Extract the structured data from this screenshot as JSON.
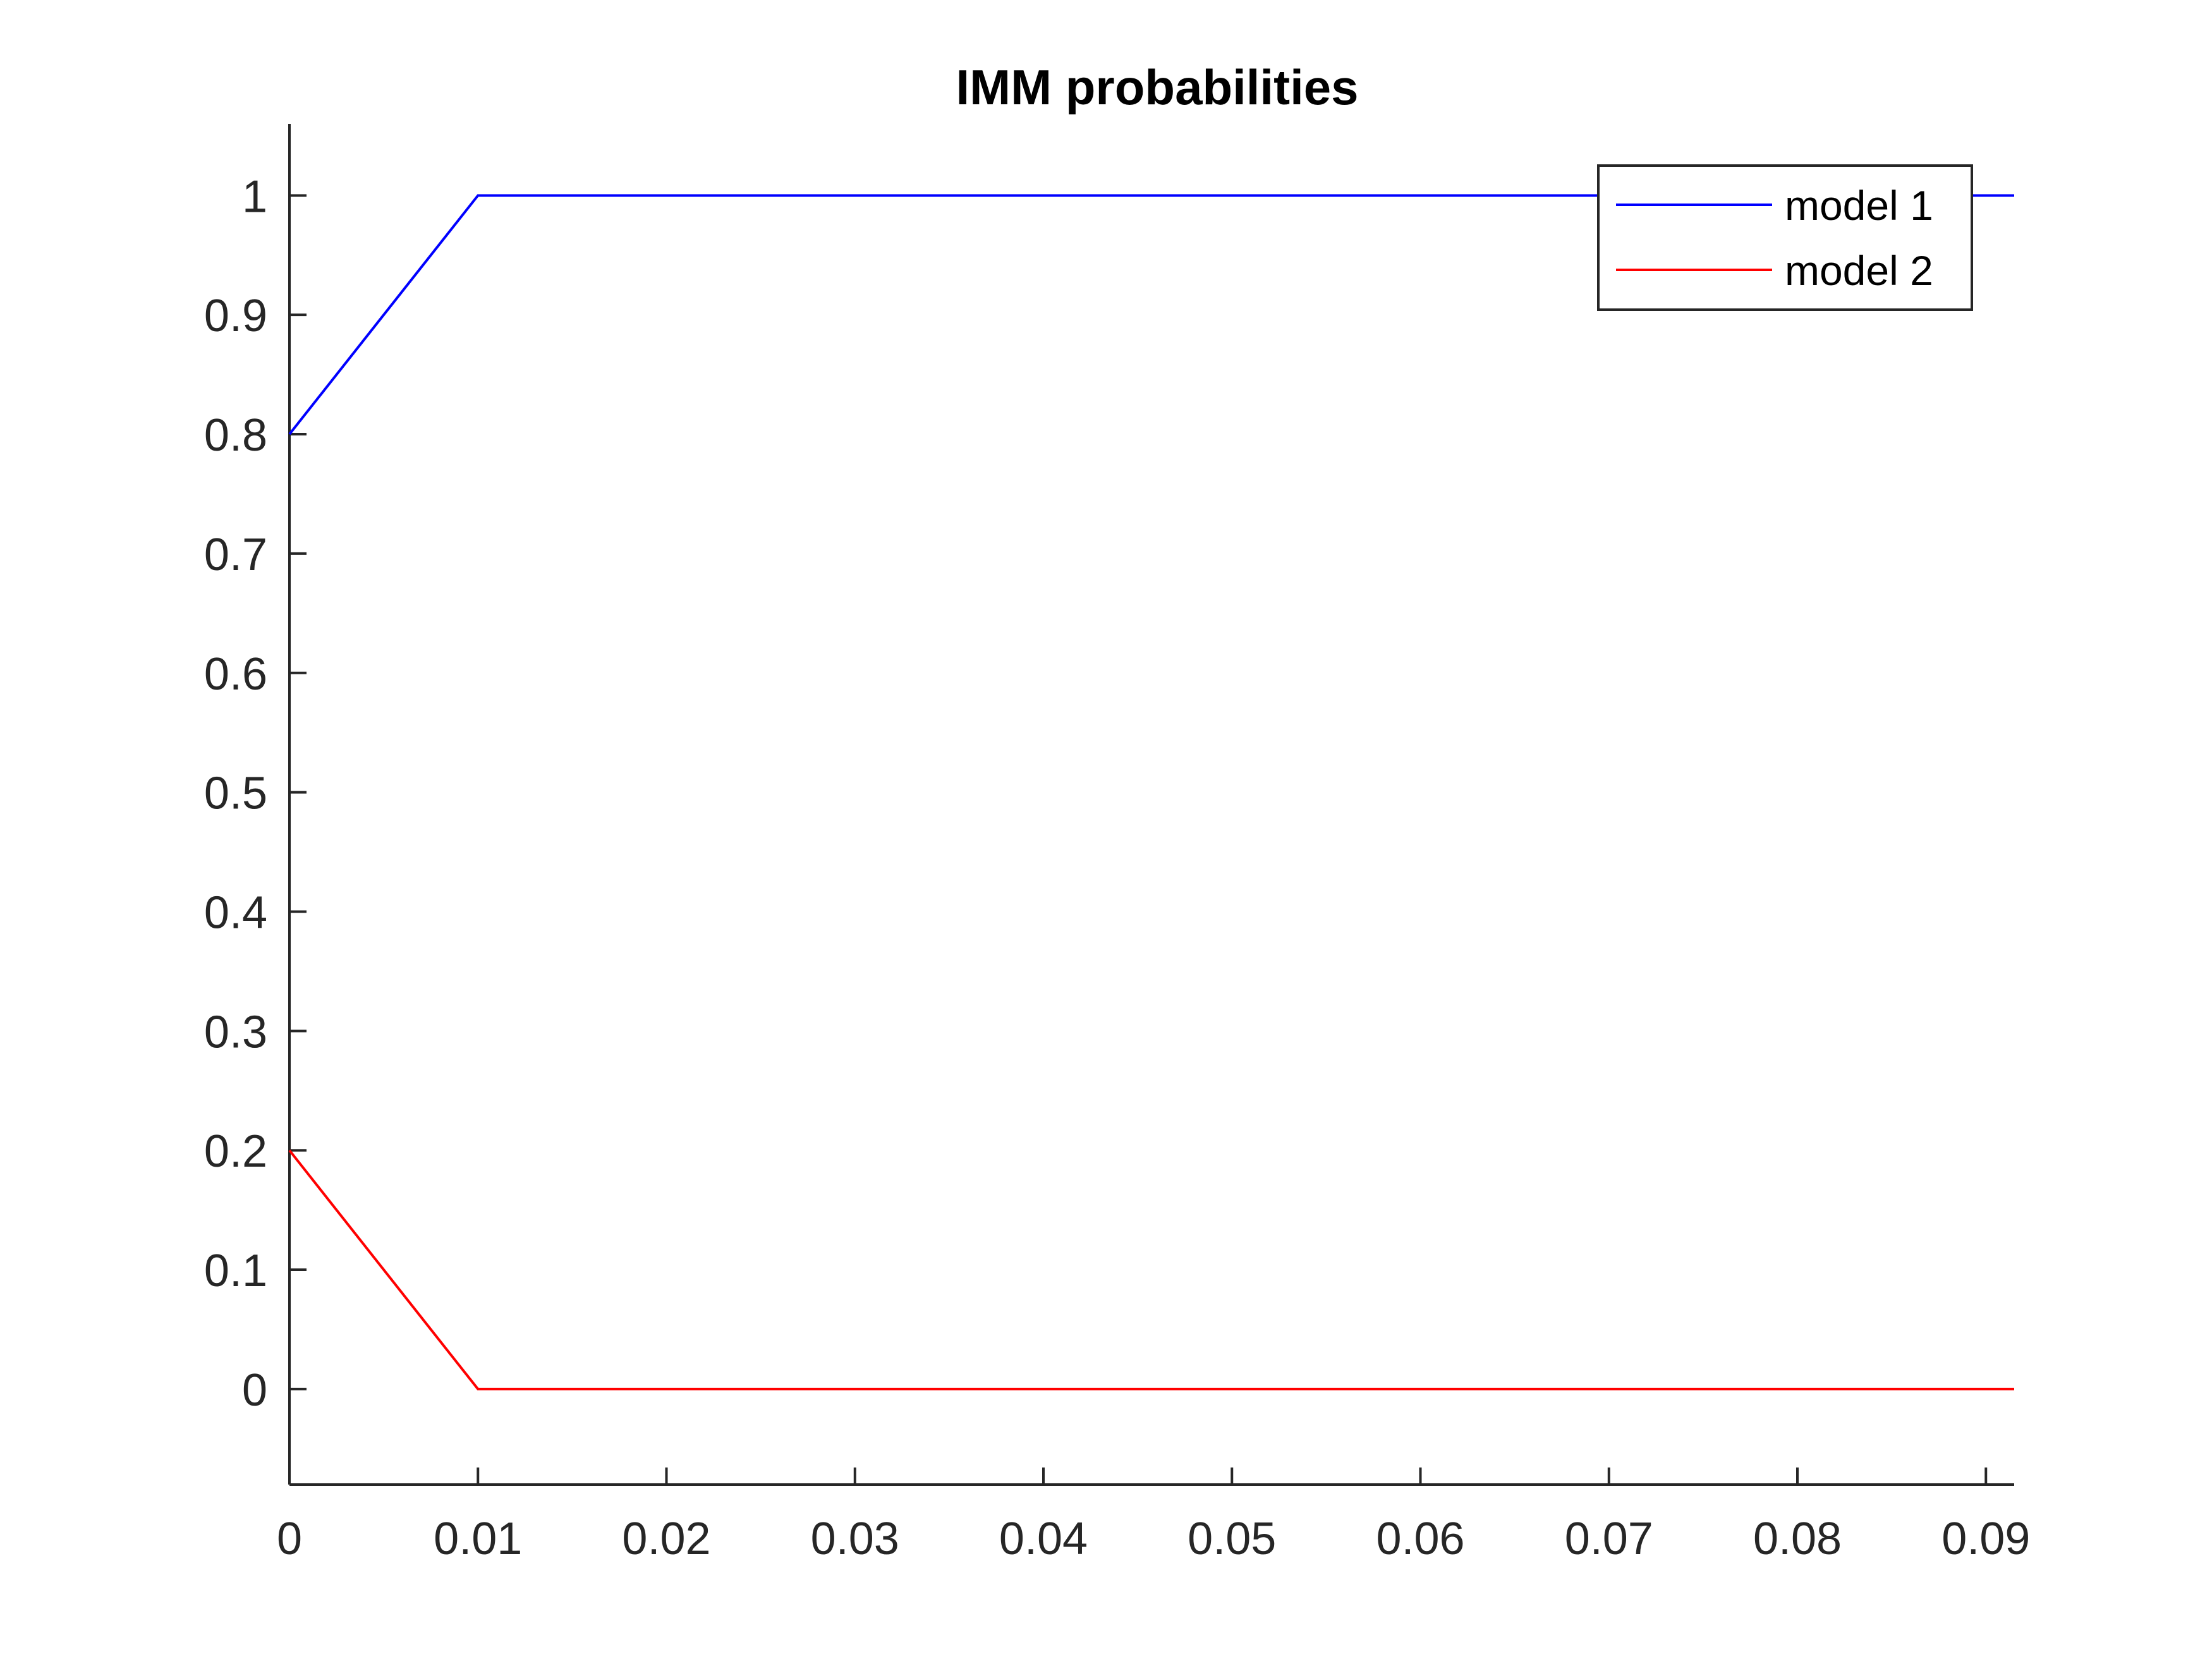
{
  "chart_data": {
    "type": "line",
    "title": "IMM probabilities",
    "xlabel": "",
    "ylabel": "",
    "xlim": [
      0,
      0.0915
    ],
    "ylim": [
      -0.08,
      1.06
    ],
    "xticks": [
      0,
      0.01,
      0.02,
      0.03,
      0.04,
      0.05,
      0.06,
      0.07,
      0.08,
      0.09
    ],
    "xtick_labels": [
      "0",
      "0.01",
      "0.02",
      "0.03",
      "0.04",
      "0.05",
      "0.06",
      "0.07",
      "0.08",
      "0.09"
    ],
    "yticks": [
      0,
      0.1,
      0.2,
      0.3,
      0.4,
      0.5,
      0.6,
      0.7,
      0.8,
      0.9,
      1
    ],
    "ytick_labels": [
      "0",
      "0.1",
      "0.2",
      "0.3",
      "0.4",
      "0.5",
      "0.6",
      "0.7",
      "0.8",
      "0.9",
      "1"
    ],
    "grid": false,
    "legend": "top-right",
    "series": [
      {
        "name": "model 1",
        "color": "#0000ff",
        "x": [
          0,
          0.01,
          0.0915
        ],
        "y": [
          0.8,
          1.0,
          1.0
        ]
      },
      {
        "name": "model 2",
        "color": "#ff0000",
        "x": [
          0,
          0.01,
          0.0915
        ],
        "y": [
          0.2,
          0.0,
          0.0
        ]
      }
    ]
  }
}
